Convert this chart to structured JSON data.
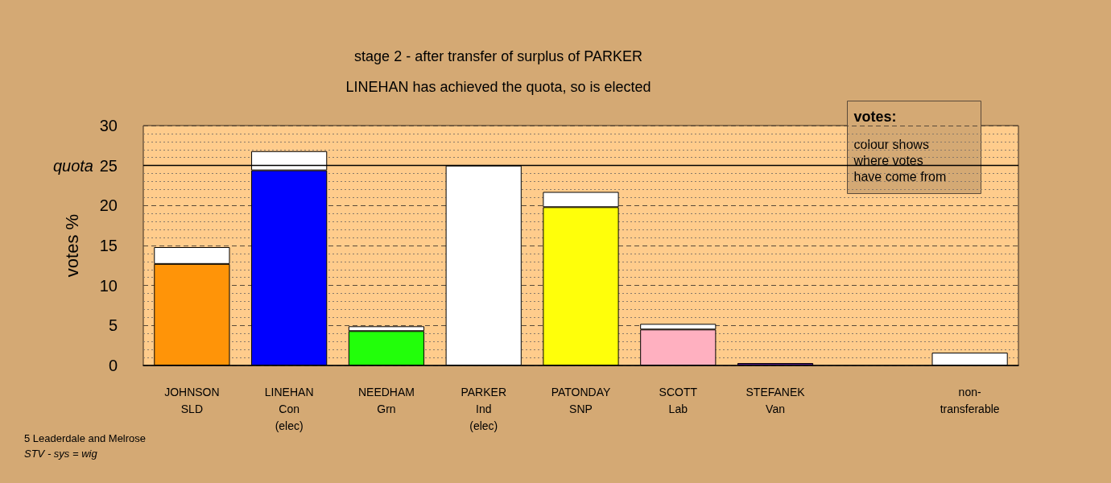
{
  "chart_data": {
    "type": "bar",
    "title": "stage 2 - after transfer of surplus of PARKER",
    "subtitle": "LINEHAN has achieved the quota, so is elected",
    "ylabel": "votes %",
    "categories": [
      "JOHNSON\nSLD",
      "LINEHAN\nCon\n(elec)",
      "NEEDHAM\nGrn",
      "PARKER\nInd\n(elec)",
      "PATONDAY\nSNP",
      "SCOTT\nLab",
      "STEFANEK\nVan",
      null,
      "non-\ntransferable"
    ],
    "stacked": true,
    "series": [
      {
        "colors": [
          "#ff9408",
          "#0000ff",
          "#22ff0a",
          "#ffffff",
          "#ffff0a",
          "#ffb0c0",
          "#551a8b",
          "#ffffff",
          "#ffffff"
        ],
        "values": [
          12.7,
          24.4,
          4.3,
          null,
          19.8,
          4.5,
          0.3,
          null,
          null
        ]
      },
      {
        "color": "#ffffff",
        "values": [
          2.1,
          2.4,
          0.6,
          25,
          1.9,
          0.7,
          null,
          null,
          1.6
        ]
      }
    ],
    "ylim": [
      0,
      30
    ],
    "yticks": [
      0,
      5,
      10,
      15,
      20,
      25,
      30
    ],
    "grid": "y",
    "ref_lines": [
      {
        "axis": "y",
        "value": 25,
        "label": "quota",
        "color": "#000000",
        "line_style": "solid"
      }
    ],
    "annotations": [
      "5 Leaderdale and Melrose",
      "STV - sys = wig",
      "votes:",
      "colour shows\nwhere votes\nhave come from"
    ]
  }
}
